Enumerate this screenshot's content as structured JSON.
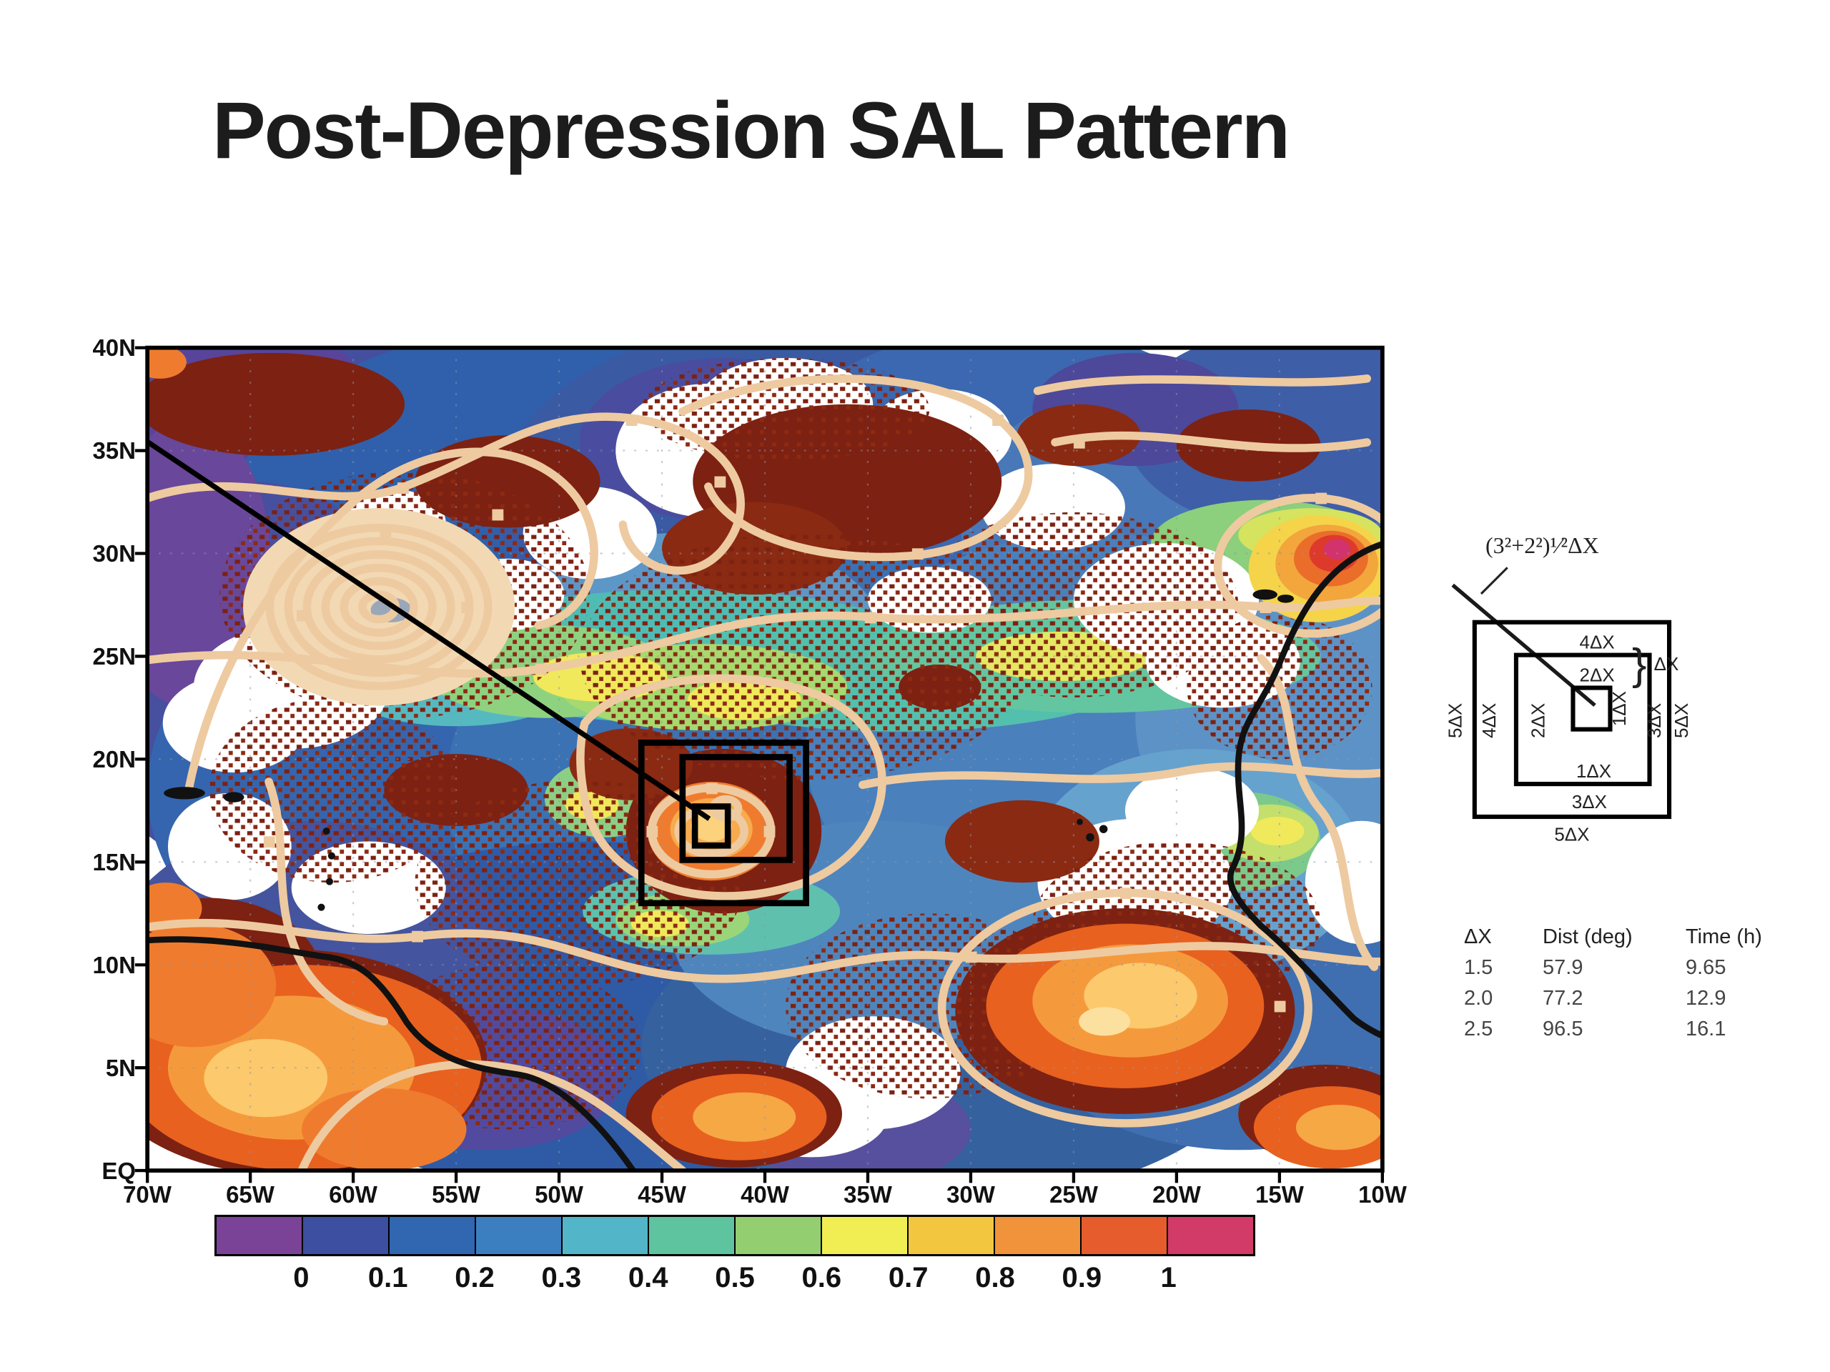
{
  "slide": {
    "title": "Post-Depression SAL Pattern"
  },
  "chart_data": {
    "type": "heatmap",
    "title": "Post-Depression SAL Pattern",
    "x_ticks": [
      "70W",
      "65W",
      "60W",
      "55W",
      "50W",
      "45W",
      "40W",
      "35W",
      "30W",
      "25W",
      "20W",
      "15W",
      "10W"
    ],
    "y_ticks": [
      "40N",
      "35N",
      "30N",
      "25N",
      "20N",
      "15N",
      "10N",
      "5N",
      "EQ"
    ],
    "x_axis_range": [
      "70W",
      "10W"
    ],
    "y_axis_range": [
      "EQ",
      "40N"
    ],
    "grid": "dotted 5-degree graticule",
    "colorbar": {
      "labels": [
        "0",
        "0.1",
        "0.2",
        "0.3",
        "0.4",
        "0.5",
        "0.6",
        "0.7",
        "0.8",
        "0.9",
        "1"
      ],
      "colors": [
        "#7b4397",
        "#3c4fa0",
        "#3166b0",
        "#3c7fc0",
        "#52b6c8",
        "#5ec4a0",
        "#93cf70",
        "#f1ee54",
        "#f2c63f",
        "#f0933a",
        "#e65c2c",
        "#d23a68"
      ]
    },
    "overlays": {
      "contour_color": "#eecaa1",
      "coastline_color": "#111111",
      "inset_boxes": 3
    }
  },
  "diagram": {
    "formula": "(3²+2²)¹⁄²ΔX",
    "labels": [
      "1ΔX",
      "2ΔX",
      "3ΔX",
      "4ΔX",
      "5ΔX"
    ],
    "brace": "}",
    "brace_label": "ΔX"
  },
  "table": {
    "headers": [
      "ΔX",
      "Dist (deg)",
      "Time (h)"
    ],
    "rows": [
      [
        "1.5",
        "57.9",
        "9.65"
      ],
      [
        "2.0",
        "77.2",
        "12.9"
      ],
      [
        "2.5",
        "96.5",
        "16.1"
      ]
    ]
  }
}
